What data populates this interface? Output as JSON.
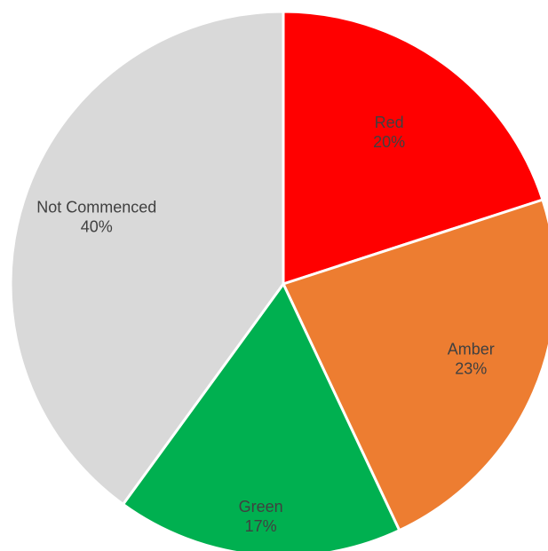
{
  "chart_data": {
    "type": "pie",
    "start_angle_deg": 0,
    "direction": "clockwise",
    "legend": "none",
    "slices": [
      {
        "label": "Red",
        "value": 20,
        "value_label": "20%",
        "color": "#ff0000"
      },
      {
        "label": "Amber",
        "value": 23,
        "value_label": "23%",
        "color": "#ed7d31"
      },
      {
        "label": "Green",
        "value": 17,
        "value_label": "17%",
        "color": "#00b050"
      },
      {
        "label": "Not Commenced",
        "value": 40,
        "value_label": "40%",
        "color": "#d9d9d9"
      }
    ]
  }
}
